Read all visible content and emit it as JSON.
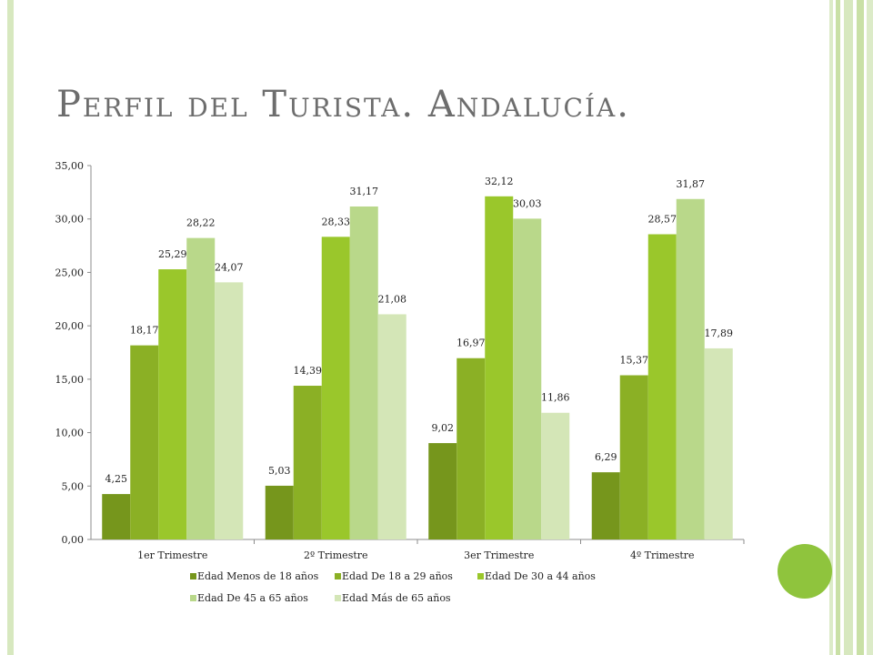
{
  "title": "Perfil del Turista. Andalucía.",
  "chart_data": {
    "type": "bar",
    "categories": [
      "1er Trimestre",
      "2º Trimestre",
      "3er Trimestre",
      "4º Trimestre"
    ],
    "series": [
      {
        "name": "Edad Menos de 18 años",
        "color": "#76961c",
        "values": [
          4.25,
          5.03,
          9.02,
          6.29
        ],
        "labels": [
          "4,25",
          "5,03",
          "9,02",
          "6,29"
        ]
      },
      {
        "name": "Edad De 18 a 29 años",
        "color": "#8bb025",
        "values": [
          18.17,
          14.39,
          16.97,
          15.37
        ],
        "labels": [
          "18,17",
          "14,39",
          "16,97",
          "15,37"
        ]
      },
      {
        "name": "Edad De 30 a 44 años",
        "color": "#9ac72b",
        "values": [
          25.29,
          28.33,
          32.12,
          28.57
        ],
        "labels": [
          "25,29",
          "28,33",
          "32,12",
          "28,57"
        ]
      },
      {
        "name": "Edad De 45 a 65 años",
        "color": "#b9d88a",
        "values": [
          28.22,
          31.17,
          30.03,
          31.87
        ],
        "labels": [
          "28,22",
          "31,17",
          "30,03",
          "31,87"
        ]
      },
      {
        "name": "Edad Más de 65 años",
        "color": "#d4e6b7",
        "values": [
          24.07,
          21.08,
          11.86,
          17.89
        ],
        "labels": [
          "24,07",
          "21,08",
          "11,86",
          "17,89"
        ]
      }
    ],
    "ylim": [
      0,
      35
    ],
    "yticks": [
      0,
      5,
      10,
      15,
      20,
      25,
      30,
      35
    ],
    "ytick_labels": [
      "0,00",
      "5,00",
      "10,00",
      "15,00",
      "20,00",
      "25,00",
      "30,00",
      "35,00"
    ],
    "grid": false,
    "legend_position": "bottom"
  }
}
